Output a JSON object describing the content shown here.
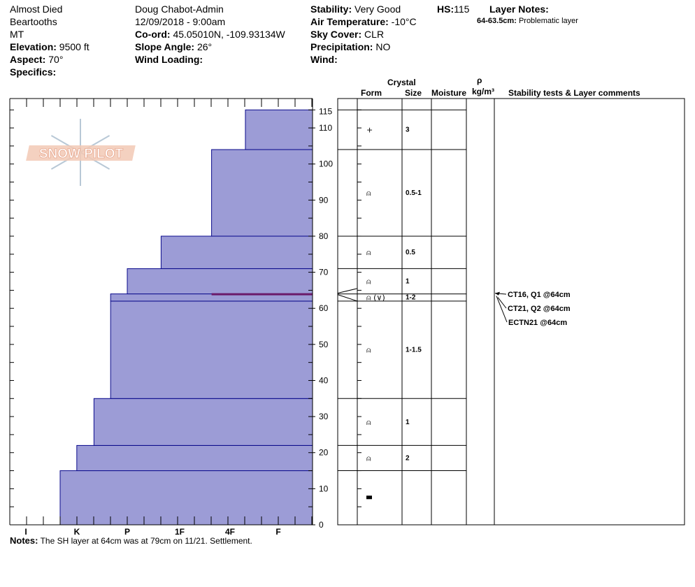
{
  "header": {
    "location": "Almost Died",
    "range": "Beartooths",
    "state": "MT",
    "elevation_label": "Elevation:",
    "elevation_value": "9500 ft",
    "aspect_label": "Aspect:",
    "aspect_value": "70°",
    "specifics_label": "Specifics:",
    "observer": "Doug Chabot-Admin",
    "datetime": "12/09/2018 - 9:00am",
    "coord_label": "Co-ord:",
    "coord_value": "45.05010N, -109.93134W",
    "slope_label": "Slope Angle:",
    "slope_value": "26°",
    "wind_loading_label": "Wind Loading:",
    "stability_label": "Stability:",
    "stability_value": "Very Good",
    "air_temp_label": "Air Temperature:",
    "air_temp_value": "-10°C",
    "sky_label": "Sky Cover:",
    "sky_value": "CLR",
    "precip_label": "Precipitation:",
    "precip_value": "NO",
    "wind_label": "Wind:",
    "hs_label": "HS:",
    "hs_value": "115",
    "layer_notes_label": "Layer Notes:",
    "layer_note_range": "64-63.5cm:",
    "layer_note_text": "Problematic layer"
  },
  "columns": {
    "crystal": "Crystal",
    "form": "Form",
    "size": "Size",
    "moisture": "Moisture",
    "rho": "ρ",
    "density_unit": "kg/m³",
    "stability": "Stability tests & Layer comments"
  },
  "notes": {
    "label": "Notes:",
    "text": "The SH layer at 64cm was at 79cm on 11/21. Settlement."
  },
  "stability_tests": [
    "CT16, Q1 @64cm",
    "CT21, Q2 @64cm",
    "ECTN21 @64cm"
  ],
  "logo_text": "SNOW PILOT",
  "colors": {
    "layer_fill": "#9c9cd6",
    "layer_edge": "#0a0a8c",
    "problem_layer": "#6a1a6a"
  },
  "chart_data": {
    "type": "bar",
    "title": "",
    "ylabel": "",
    "xlabel": "",
    "y_unit": "cm",
    "ylim": [
      0,
      118
    ],
    "y_ticks": [
      0,
      10,
      20,
      30,
      40,
      50,
      60,
      70,
      80,
      90,
      100,
      110,
      115
    ],
    "hardness_scale": [
      "I",
      "K",
      "P",
      "1F",
      "4F",
      "F"
    ],
    "layers": [
      {
        "bottom": 0,
        "top": 15,
        "hardness": "P",
        "form": "■",
        "size": ""
      },
      {
        "bottom": 15,
        "top": 22,
        "hardness": "P+",
        "form": "⍝",
        "size": "2"
      },
      {
        "bottom": 22,
        "top": 35,
        "hardness": "1F-",
        "form": "⍝",
        "size": "1"
      },
      {
        "bottom": 35,
        "top": 62,
        "hardness": "1F",
        "form": "⍝",
        "size": "1-1.5"
      },
      {
        "bottom": 62,
        "top": 64,
        "hardness": "1F",
        "form": "⍝ (∨)",
        "size": "1-2"
      },
      {
        "bottom": 64,
        "top": 71,
        "hardness": "1F+",
        "form": "⍝",
        "size": "1"
      },
      {
        "bottom": 71,
        "top": 80,
        "hardness": "4F",
        "form": "⍝",
        "size": "0.5"
      },
      {
        "bottom": 80,
        "top": 104,
        "hardness": "F",
        "form": "⍝",
        "size": "0.5-1"
      },
      {
        "bottom": 104,
        "top": 115,
        "hardness": "F+",
        "form": "+",
        "size": "3"
      }
    ],
    "hardness_values": [
      5,
      4.67,
      4.33,
      4,
      4,
      3.67,
      3,
      2,
      1.33
    ],
    "problem_layer": {
      "bottom": 63.5,
      "top": 64,
      "hardness_value": 2
    }
  }
}
